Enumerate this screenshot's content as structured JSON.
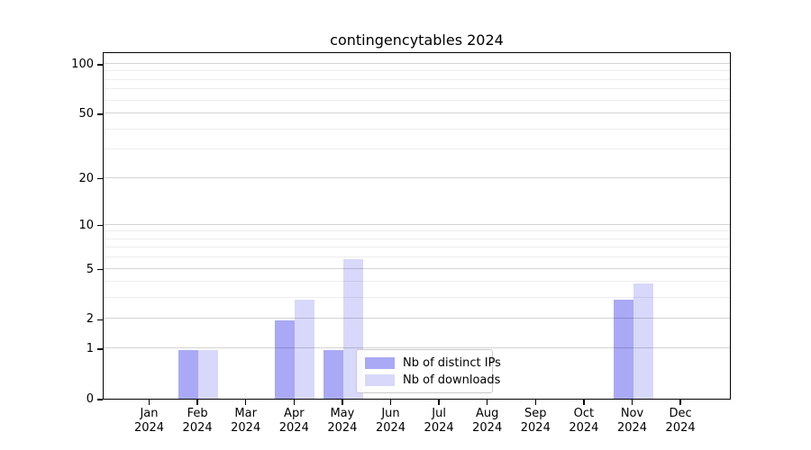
{
  "title": "contingencytables 2024",
  "chart_data": {
    "type": "bar",
    "title": "contingencytables 2024",
    "categories": [
      "Jan",
      "Feb",
      "Mar",
      "Apr",
      "May",
      "Jun",
      "Jul",
      "Aug",
      "Sep",
      "Oct",
      "Nov",
      "Dec"
    ],
    "x_tick_second_line": "2024",
    "series": [
      {
        "name": "Nb of distinct IPs",
        "color": "#a9a9f6",
        "values": [
          0,
          1,
          0,
          2,
          1,
          0,
          0,
          0,
          0,
          0,
          3,
          0
        ]
      },
      {
        "name": "Nb of downloads",
        "color": "#d8d8fa",
        "values": [
          0,
          1,
          0,
          3,
          6,
          0,
          0,
          0,
          0,
          0,
          4,
          0
        ]
      }
    ],
    "yscale": "log1p",
    "ylim": [
      0,
      120
    ],
    "yticks": [
      0,
      1,
      2,
      5,
      10,
      20,
      50,
      100
    ],
    "yticks_minor": [
      3,
      4,
      6,
      7,
      8,
      9,
      30,
      40,
      60,
      70,
      80,
      90
    ],
    "grid": "horizontal",
    "legend": {
      "position": "lower-center-inside",
      "items": [
        "Nb of distinct IPs",
        "Nb of downloads"
      ]
    }
  }
}
